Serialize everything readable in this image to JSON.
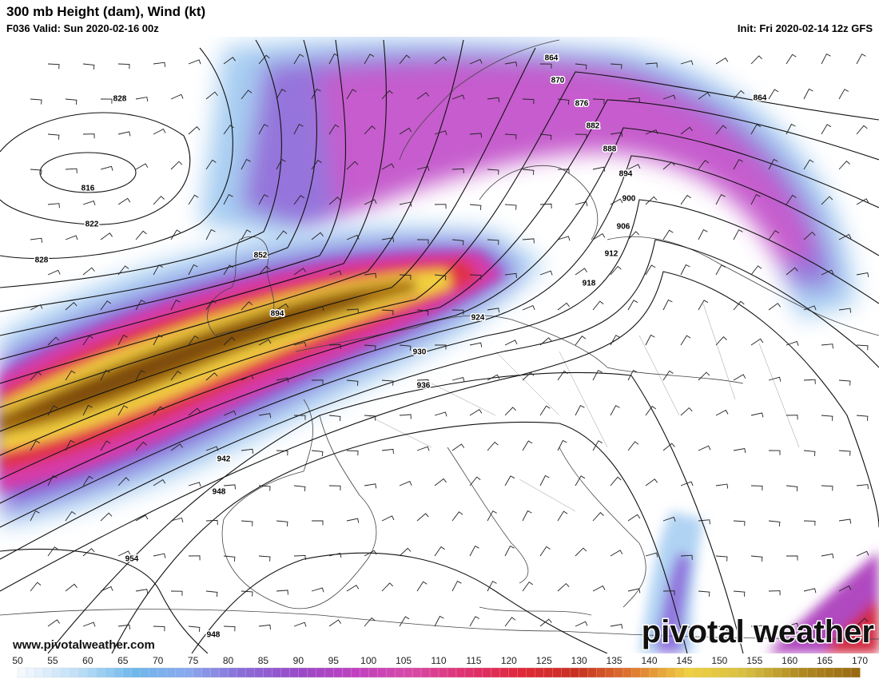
{
  "header": {
    "title": "300 mb Height (dam), Wind (kt)",
    "valid": "F036 Valid: Sun 2020-02-16 00z",
    "init": "Init: Fri 2020-02-14 12z GFS"
  },
  "contour_labels": [
    828,
    816,
    822,
    828,
    852,
    894,
    864,
    870,
    876,
    882,
    888,
    894,
    900,
    906,
    912,
    918,
    924,
    930,
    936,
    942,
    948,
    954,
    948,
    864
  ],
  "colorbar": {
    "ticks": [
      50,
      55,
      60,
      65,
      70,
      75,
      80,
      85,
      90,
      95,
      100,
      105,
      110,
      115,
      120,
      125,
      130,
      135,
      140,
      145,
      150,
      155,
      160,
      165,
      170
    ]
  },
  "watermark": {
    "url": "www.pivotalweather.com",
    "brand": "pivotal weather"
  }
}
